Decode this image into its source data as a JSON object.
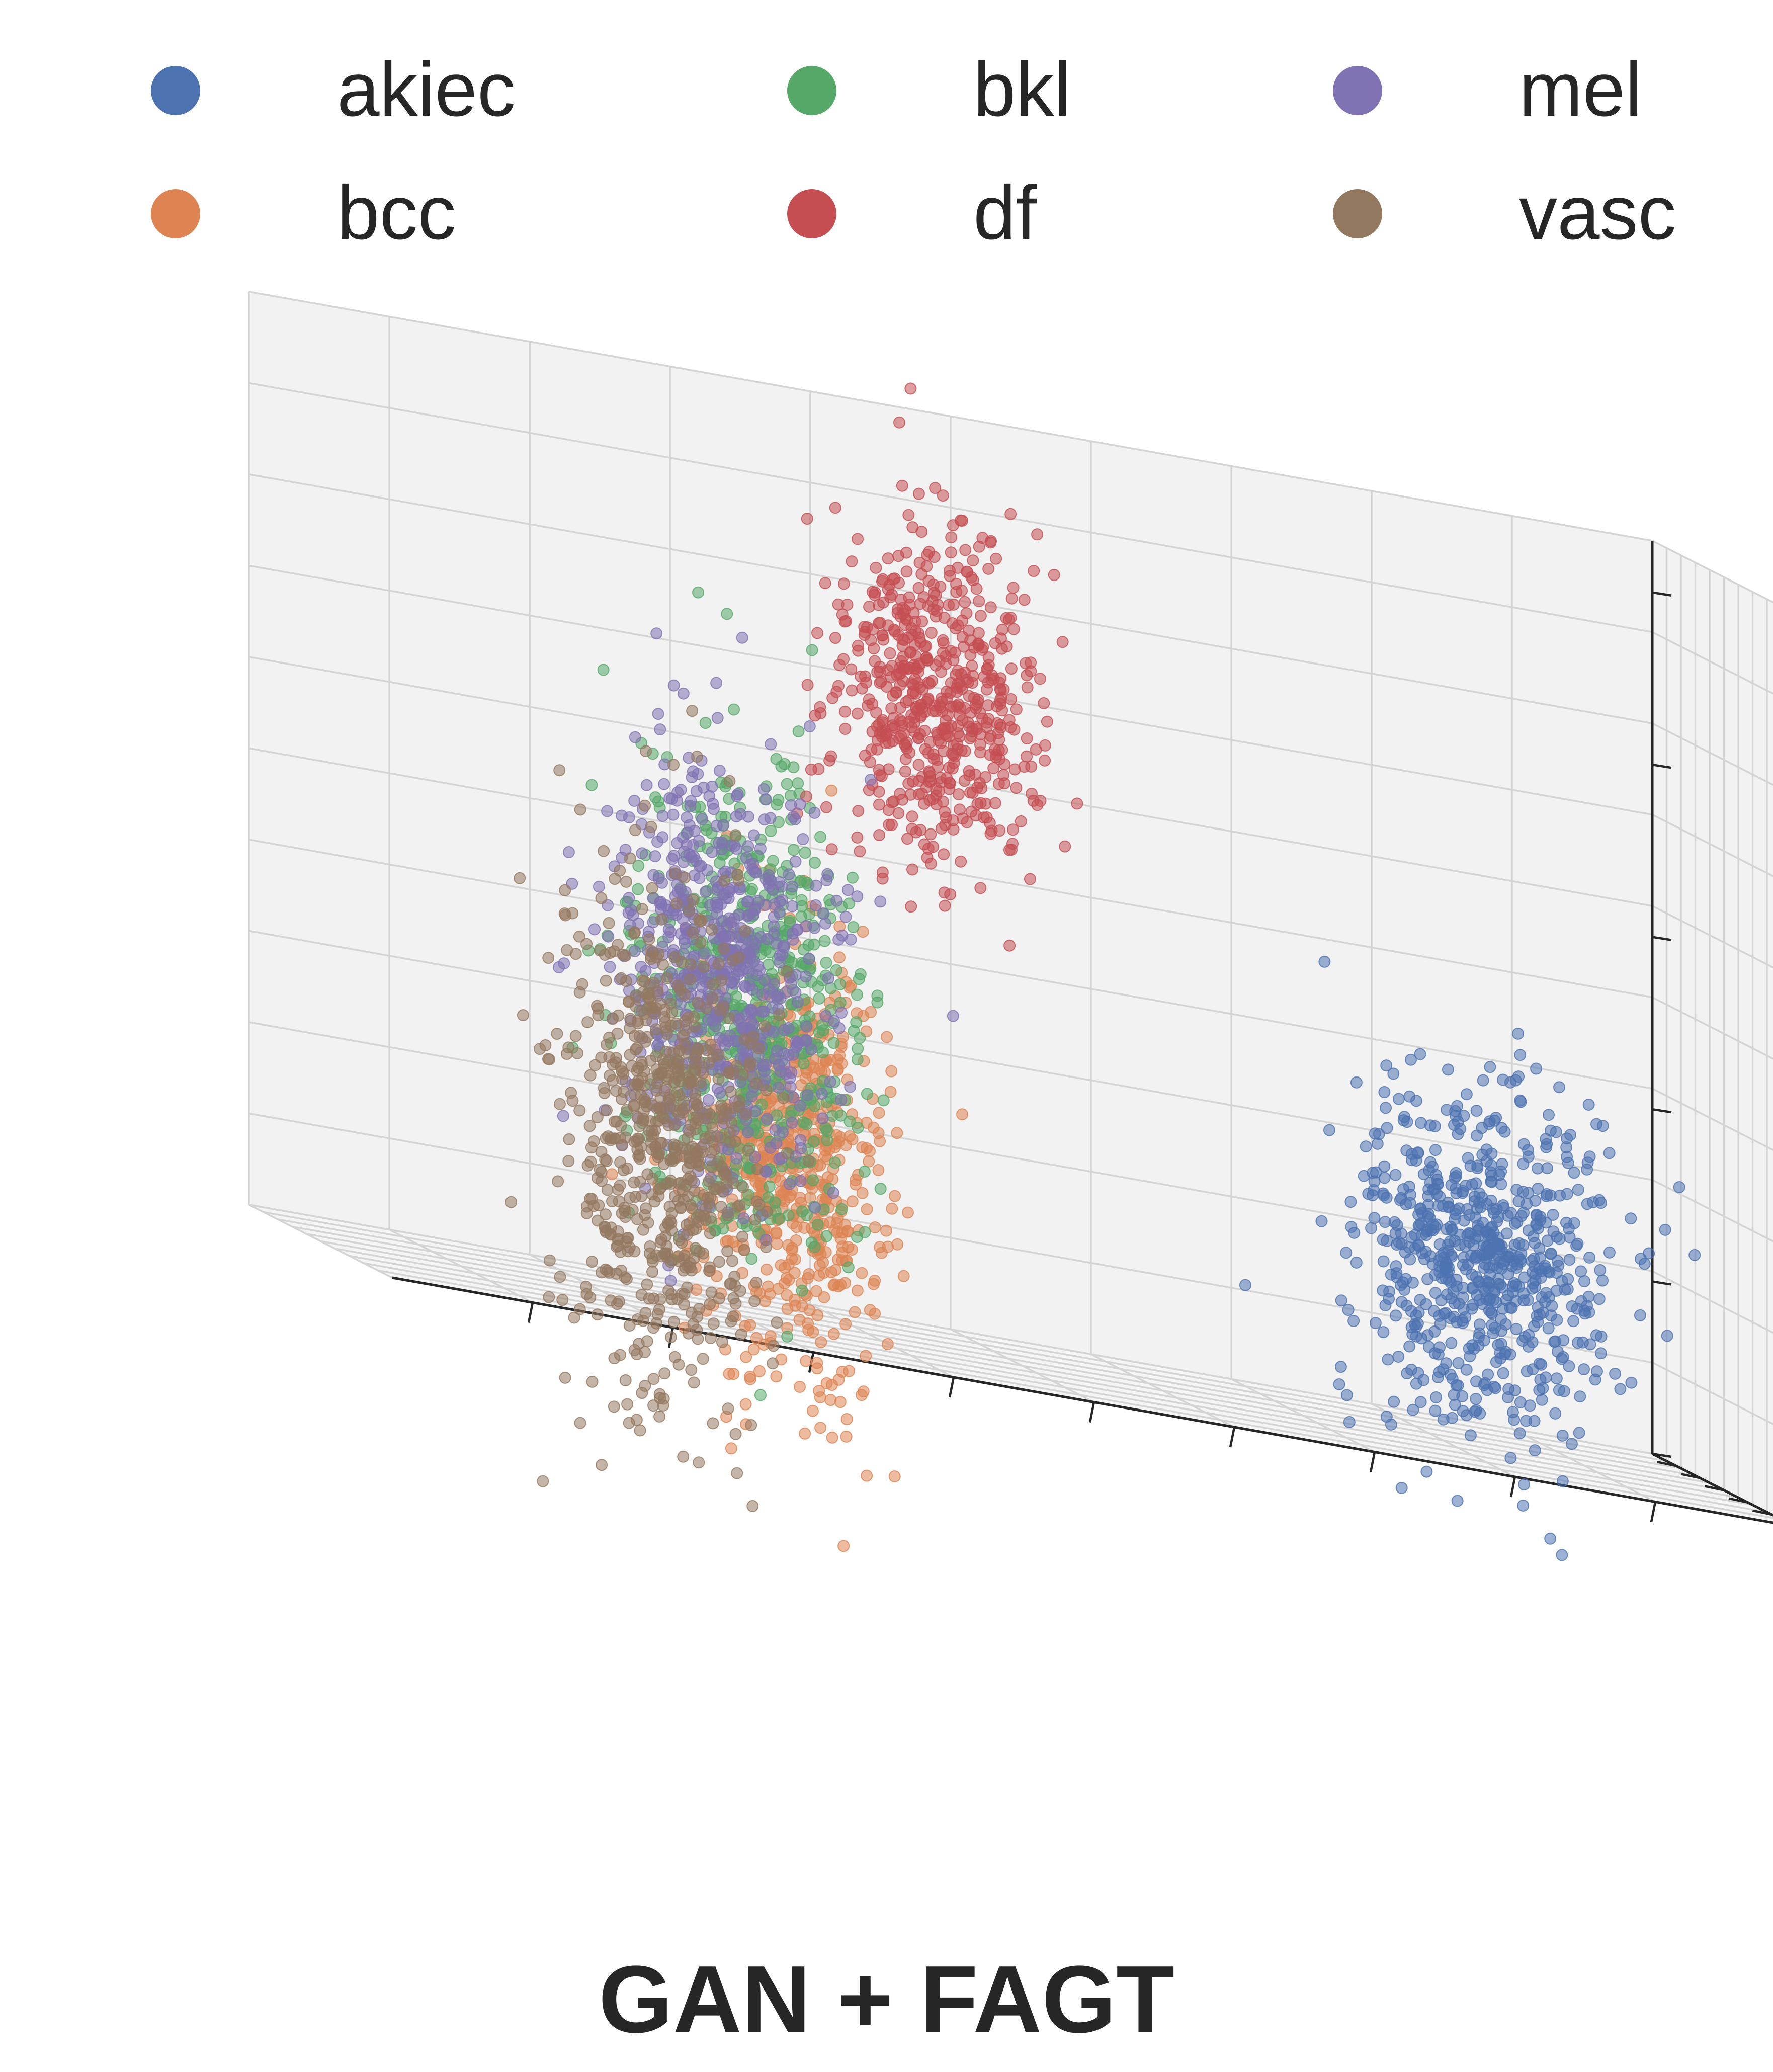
{
  "chart_data": {
    "type": "scatter",
    "projection": "3d",
    "title": "GAN + FAGT",
    "xlabel": "",
    "ylabel": "",
    "zlabel": "",
    "grid": true,
    "tick_labels_shown": false,
    "legend_placement": "top, 3 columns",
    "xlim": [
      0,
      10
    ],
    "ylim": [
      0,
      10
    ],
    "zlim": [
      0,
      10
    ],
    "series": [
      {
        "name": "akiec",
        "color": "#4c72b0",
        "center": [
          8.2,
          8.6,
          1.9
        ],
        "spread": [
          0.55,
          0.45,
          0.9
        ],
        "count": 700
      },
      {
        "name": "bcc",
        "color": "#dd8452",
        "center": [
          3.6,
          3.2,
          1.9
        ],
        "spread": [
          0.5,
          0.35,
          1.2
        ],
        "count": 650
      },
      {
        "name": "bkl",
        "color": "#55a868",
        "center": [
          3.2,
          2.9,
          3.4
        ],
        "spread": [
          0.6,
          0.4,
          1.3
        ],
        "count": 650
      },
      {
        "name": "df",
        "color": "#c44e52",
        "center": [
          3.4,
          4.2,
          7.3
        ],
        "spread": [
          0.55,
          0.35,
          0.9
        ],
        "count": 600
      },
      {
        "name": "mel",
        "color": "#8172b3",
        "center": [
          1.8,
          2.5,
          3.9
        ],
        "spread": [
          0.55,
          0.4,
          1.2
        ],
        "count": 650
      },
      {
        "name": "vasc",
        "color": "#937860",
        "center": [
          1.5,
          2.1,
          1.9
        ],
        "spread": [
          0.55,
          0.35,
          1.4
        ],
        "count": 700
      }
    ]
  }
}
